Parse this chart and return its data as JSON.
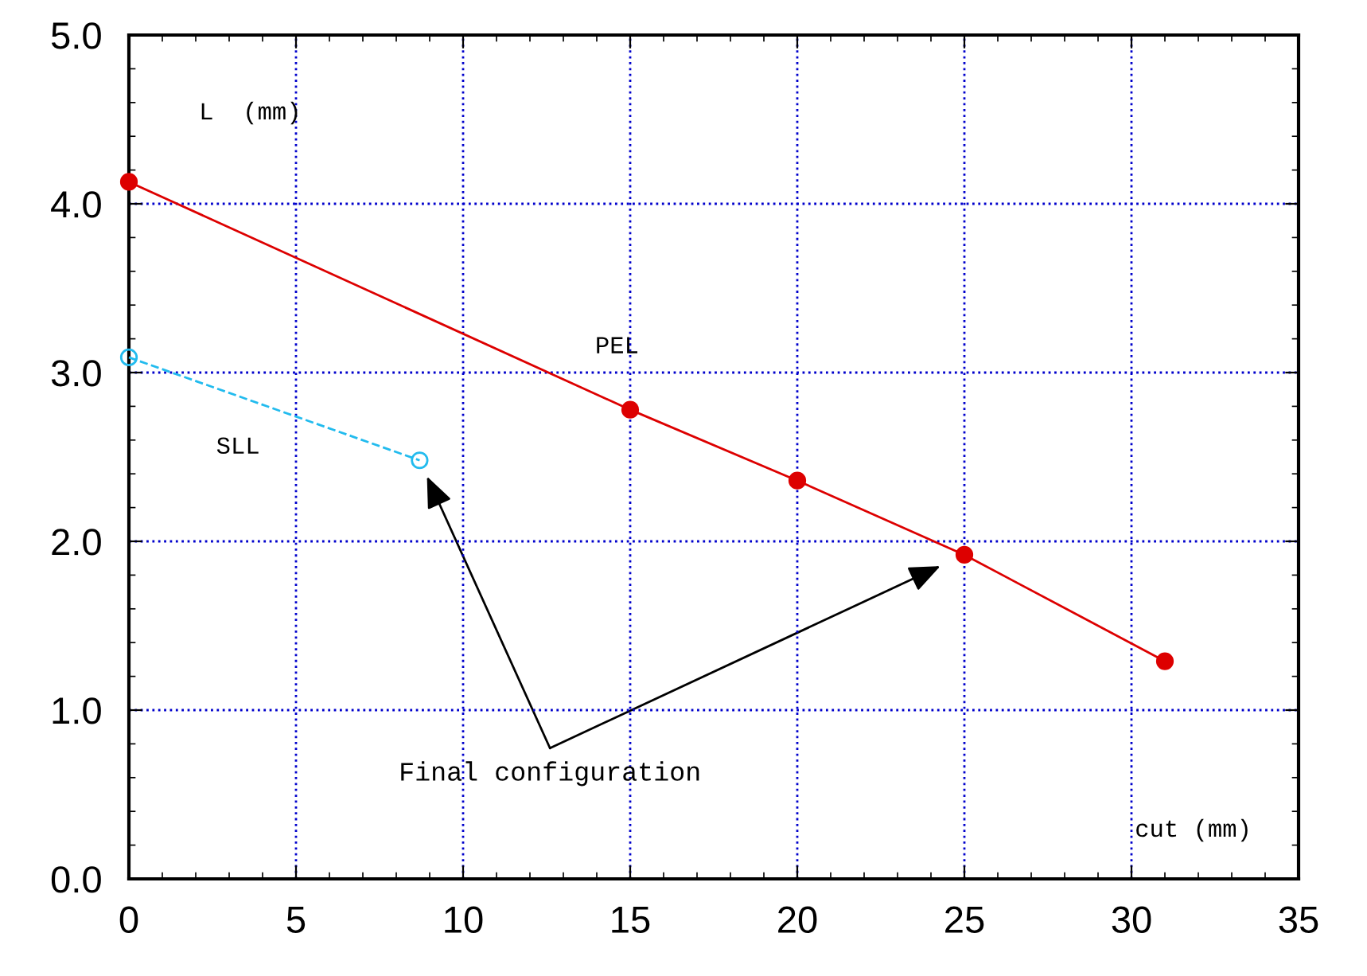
{
  "chart_data": {
    "type": "line",
    "xlabel": "cut (mm)",
    "ylabel": "L  (mm)",
    "series": [
      {
        "name": "PEL",
        "color": "#dd0000",
        "x": [
          0,
          15,
          20,
          25,
          31
        ],
        "values": [
          4.13,
          2.78,
          2.36,
          1.92,
          1.29
        ],
        "marker": "circle",
        "line_style": "solid"
      },
      {
        "name": "SLL",
        "color": "#22bbee",
        "x": [
          0,
          8.7
        ],
        "values": [
          3.09,
          2.48
        ],
        "marker": "circle",
        "line_style": "dashed"
      }
    ],
    "annotations": [
      "Final configuration"
    ],
    "xlim": [
      0,
      35
    ],
    "ylim": [
      0,
      5.0
    ],
    "xticks": [
      0,
      5,
      10,
      15,
      20,
      25,
      30,
      35
    ],
    "yticks": [
      {
        "value": 0,
        "label": "0.0"
      },
      {
        "value": 1,
        "label": "1.0"
      },
      {
        "value": 2,
        "label": "2.0"
      },
      {
        "value": 3,
        "label": "3.0"
      },
      {
        "value": 4,
        "label": "4.0"
      },
      {
        "value": 5,
        "label": "5.0"
      }
    ],
    "grid": true
  }
}
